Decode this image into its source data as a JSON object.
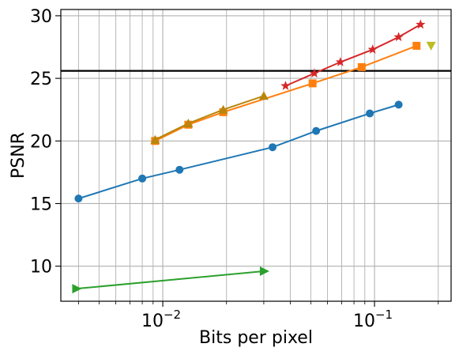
{
  "chart_data": {
    "type": "line",
    "xscale": "log",
    "xlabel": "Bits per pixel",
    "ylabel": "PSNR",
    "xlim": [
      0.0033,
      0.23
    ],
    "ylim": [
      7.2,
      30.5
    ],
    "grid": true,
    "x_major_ticks": [
      {
        "value": 0.01,
        "base": "10",
        "exp": "−2"
      },
      {
        "value": 0.1,
        "base": "10",
        "exp": "−1"
      }
    ],
    "y_ticks": [
      {
        "value": 10,
        "label": "10"
      },
      {
        "value": 15,
        "label": "15"
      },
      {
        "value": 20,
        "label": "20"
      },
      {
        "value": 25,
        "label": "25"
      },
      {
        "value": 30,
        "label": "30"
      }
    ],
    "hline": {
      "y": 25.6,
      "color": "#000000"
    },
    "series": [
      {
        "color": "#1f77b4",
        "marker": "circle",
        "x": [
          0.004,
          0.008,
          0.012,
          0.033,
          0.053,
          0.095,
          0.13
        ],
        "y": [
          15.4,
          17.0,
          17.7,
          19.5,
          20.8,
          22.2,
          22.9
        ]
      },
      {
        "color": "#2ca02c",
        "marker": "triangle-right",
        "x": [
          0.0039,
          0.03
        ],
        "y": [
          8.2,
          9.6
        ]
      },
      {
        "color": "#ff7f0e",
        "marker": "square",
        "x": [
          0.0092,
          0.0132,
          0.0193,
          0.051,
          0.087,
          0.158
        ],
        "y": [
          20.0,
          21.3,
          22.3,
          24.6,
          25.9,
          27.6
        ]
      },
      {
        "color": "#bcbd22",
        "marker": "triangle-down",
        "x": [
          0.185
        ],
        "y": [
          27.6
        ]
      },
      {
        "color": "#b8860b",
        "marker": "triangle-up",
        "x": [
          0.0092,
          0.0132,
          0.0193,
          0.03
        ],
        "y": [
          20.1,
          21.4,
          22.5,
          23.6
        ]
      },
      {
        "color": "#d62728",
        "marker": "star",
        "x": [
          0.038,
          0.052,
          0.069,
          0.098,
          0.13,
          0.165
        ],
        "y": [
          24.4,
          25.4,
          26.3,
          27.3,
          28.3,
          29.3
        ]
      }
    ]
  }
}
